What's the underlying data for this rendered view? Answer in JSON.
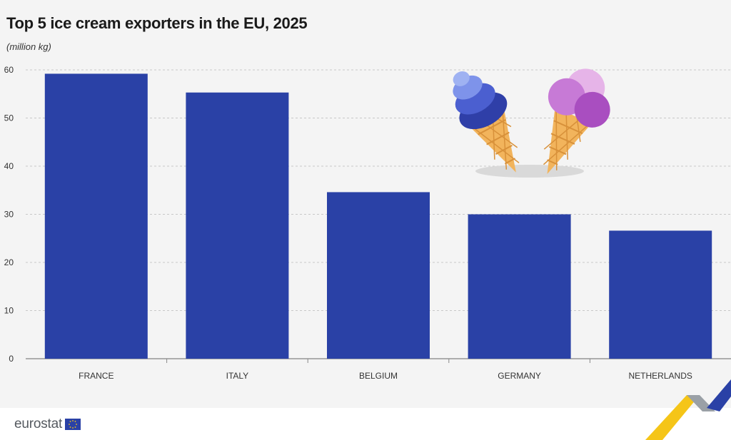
{
  "header": {
    "title": "Top 5 ice cream exporters in the EU, 2025",
    "unit": "(million kg)"
  },
  "chart_data": {
    "type": "bar",
    "title": "Top 5 ice cream exporters in the EU, 2025",
    "subtitle": "(million kg)",
    "xlabel": "",
    "ylabel": "",
    "categories": [
      "FRANCE",
      "ITALY",
      "BELGIUM",
      "GERMANY",
      "NETHERLANDS"
    ],
    "values": [
      59.2,
      55.3,
      34.6,
      30.0,
      26.6
    ],
    "ylim": [
      0,
      60
    ],
    "yticks": [
      0,
      10,
      20,
      30,
      40,
      50,
      60
    ],
    "grid": true,
    "legend": "none",
    "bar_color": "#2a41a6"
  },
  "footer": {
    "brand": "eurostat",
    "accent_colors": [
      "#f5c518",
      "#2a41a6",
      "#9aa0a6"
    ]
  },
  "illustration": {
    "icon": "ice-cream-cones-icon",
    "colors": [
      "#4b5fd0",
      "#b464c8",
      "#f2b45c"
    ]
  }
}
